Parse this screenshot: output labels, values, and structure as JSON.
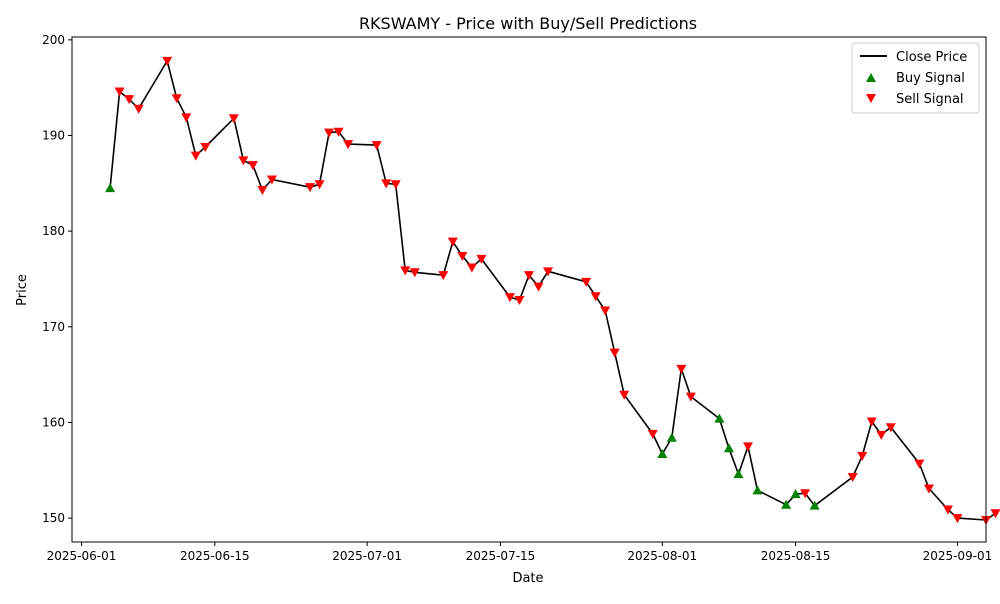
{
  "chart_data": {
    "type": "line",
    "title": "RKSWAMY - Price with Buy/Sell Predictions",
    "xlabel": "Date",
    "ylabel": "Price",
    "ylim": [
      147.5,
      200.3
    ],
    "xlim": [
      "2025-05-31",
      "2025-09-04"
    ],
    "x_ticks": [
      "2025-06-01",
      "2025-06-15",
      "2025-07-01",
      "2025-07-15",
      "2025-08-01",
      "2025-08-15",
      "2025-09-01"
    ],
    "y_ticks": [
      150,
      160,
      170,
      180,
      190,
      200
    ],
    "grid": false,
    "legend_position": "top-right",
    "legend": {
      "close": "Close Price",
      "buy": "Buy Signal",
      "sell": "Sell Signal"
    },
    "colors": {
      "close": "#000000",
      "buy": "#008000",
      "sell": "#ff0000"
    },
    "series": [
      {
        "name": "Close Price",
        "points": [
          {
            "date": "2025-06-04",
            "price": 184.5,
            "signal": "buy"
          },
          {
            "date": "2025-06-05",
            "price": 194.6,
            "signal": "sell"
          },
          {
            "date": "2025-06-06",
            "price": 193.8,
            "signal": "sell"
          },
          {
            "date": "2025-06-07",
            "price": 192.8,
            "signal": "sell"
          },
          {
            "date": "2025-06-10",
            "price": 197.8,
            "signal": "sell"
          },
          {
            "date": "2025-06-11",
            "price": 193.9,
            "signal": "sell"
          },
          {
            "date": "2025-06-12",
            "price": 191.9,
            "signal": "sell"
          },
          {
            "date": "2025-06-13",
            "price": 187.9,
            "signal": "sell"
          },
          {
            "date": "2025-06-14",
            "price": 188.8,
            "signal": "sell"
          },
          {
            "date": "2025-06-17",
            "price": 191.8,
            "signal": "sell"
          },
          {
            "date": "2025-06-18",
            "price": 187.4,
            "signal": "sell"
          },
          {
            "date": "2025-06-19",
            "price": 186.9,
            "signal": "sell"
          },
          {
            "date": "2025-06-20",
            "price": 184.3,
            "signal": "sell"
          },
          {
            "date": "2025-06-21",
            "price": 185.4,
            "signal": "sell"
          },
          {
            "date": "2025-06-25",
            "price": 184.6,
            "signal": "sell"
          },
          {
            "date": "2025-06-26",
            "price": 184.9,
            "signal": "sell"
          },
          {
            "date": "2025-06-27",
            "price": 190.3,
            "signal": "sell"
          },
          {
            "date": "2025-06-28",
            "price": 190.4,
            "signal": "sell"
          },
          {
            "date": "2025-06-29",
            "price": 189.1,
            "signal": "sell"
          },
          {
            "date": "2025-07-02",
            "price": 189.0,
            "signal": "sell"
          },
          {
            "date": "2025-07-03",
            "price": 185.0,
            "signal": "sell"
          },
          {
            "date": "2025-07-04",
            "price": 184.9,
            "signal": "sell"
          },
          {
            "date": "2025-07-05",
            "price": 175.9,
            "signal": "sell"
          },
          {
            "date": "2025-07-06",
            "price": 175.7,
            "signal": "sell"
          },
          {
            "date": "2025-07-09",
            "price": 175.4,
            "signal": "sell"
          },
          {
            "date": "2025-07-10",
            "price": 178.9,
            "signal": "sell"
          },
          {
            "date": "2025-07-11",
            "price": 177.4,
            "signal": "sell"
          },
          {
            "date": "2025-07-12",
            "price": 176.2,
            "signal": "sell"
          },
          {
            "date": "2025-07-13",
            "price": 177.1,
            "signal": "sell"
          },
          {
            "date": "2025-07-16",
            "price": 173.1,
            "signal": "sell"
          },
          {
            "date": "2025-07-17",
            "price": 172.8,
            "signal": "sell"
          },
          {
            "date": "2025-07-18",
            "price": 175.4,
            "signal": "sell"
          },
          {
            "date": "2025-07-19",
            "price": 174.2,
            "signal": "sell"
          },
          {
            "date": "2025-07-20",
            "price": 175.8,
            "signal": "sell"
          },
          {
            "date": "2025-07-24",
            "price": 174.7,
            "signal": "sell"
          },
          {
            "date": "2025-07-25",
            "price": 173.2,
            "signal": "sell"
          },
          {
            "date": "2025-07-26",
            "price": 171.7,
            "signal": "sell"
          },
          {
            "date": "2025-07-27",
            "price": 167.3,
            "signal": "sell"
          },
          {
            "date": "2025-07-28",
            "price": 162.9,
            "signal": "sell"
          },
          {
            "date": "2025-07-31",
            "price": 158.8,
            "signal": "sell"
          },
          {
            "date": "2025-08-01",
            "price": 156.7,
            "signal": "buy"
          },
          {
            "date": "2025-08-02",
            "price": 158.4,
            "signal": "buy"
          },
          {
            "date": "2025-08-03",
            "price": 165.6,
            "signal": "sell"
          },
          {
            "date": "2025-08-04",
            "price": 162.7,
            "signal": "sell"
          },
          {
            "date": "2025-08-07",
            "price": 160.4,
            "signal": "buy"
          },
          {
            "date": "2025-08-08",
            "price": 157.3,
            "signal": "buy"
          },
          {
            "date": "2025-08-09",
            "price": 154.6,
            "signal": "buy"
          },
          {
            "date": "2025-08-10",
            "price": 157.5,
            "signal": "sell"
          },
          {
            "date": "2025-08-11",
            "price": 152.9,
            "signal": "buy"
          },
          {
            "date": "2025-08-14",
            "price": 151.4,
            "signal": "buy"
          },
          {
            "date": "2025-08-15",
            "price": 152.5,
            "signal": "buy"
          },
          {
            "date": "2025-08-16",
            "price": 152.6,
            "signal": "sell"
          },
          {
            "date": "2025-08-17",
            "price": 151.3,
            "signal": "buy"
          },
          {
            "date": "2025-08-21",
            "price": 154.3,
            "signal": "sell"
          },
          {
            "date": "2025-08-22",
            "price": 156.5,
            "signal": "sell"
          },
          {
            "date": "2025-08-23",
            "price": 160.1,
            "signal": "sell"
          },
          {
            "date": "2025-08-24",
            "price": 158.7,
            "signal": "sell"
          },
          {
            "date": "2025-08-25",
            "price": 159.5,
            "signal": "sell"
          },
          {
            "date": "2025-08-28",
            "price": 155.7,
            "signal": "sell"
          },
          {
            "date": "2025-08-29",
            "price": 153.1,
            "signal": "sell"
          },
          {
            "date": "2025-08-31",
            "price": 150.9,
            "signal": "sell"
          },
          {
            "date": "2025-09-01",
            "price": 150.0,
            "signal": "sell"
          },
          {
            "date": "2025-09-04",
            "price": 149.8,
            "signal": "sell"
          },
          {
            "date": "2025-09-05",
            "price": 150.5,
            "signal": "sell"
          }
        ]
      }
    ]
  }
}
